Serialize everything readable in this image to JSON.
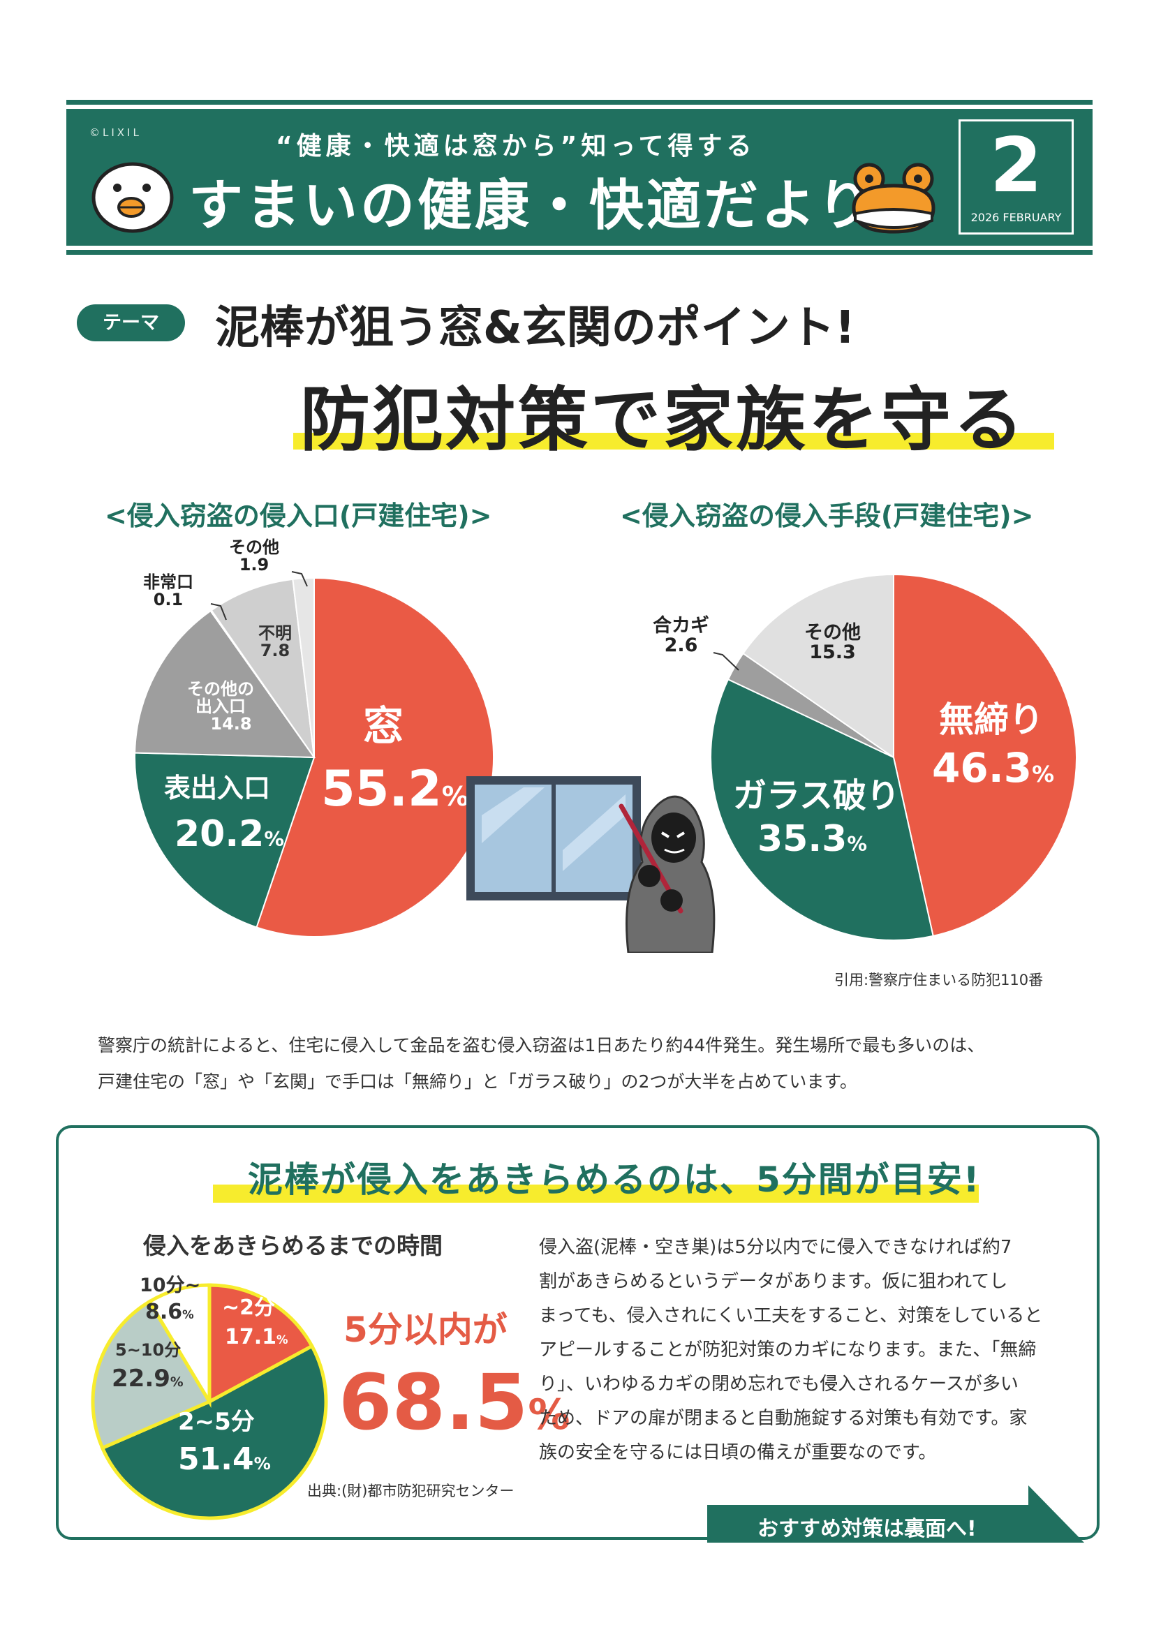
{
  "header": {
    "copyright": "©LIXIL",
    "subtitle": "“健康・快適は窓から”知って得する",
    "title": "すまいの健康・快適だより",
    "issue_number": "2",
    "issue_date": "2026 FEBRUARY"
  },
  "theme": {
    "badge": "テーマ",
    "line1": "泥棒が狙う窓&玄関のポイント!",
    "line2": "防犯対策で家族を守る"
  },
  "colors": {
    "green": "#20705f",
    "red": "#ea5a45",
    "gray": "#9e9e9e",
    "light_gray": "#e0e0e0",
    "pale_green": "#b9cdc7",
    "yellow": "#f7ec2d"
  },
  "icons": [
    "chick-icon",
    "frog-icon",
    "window-icon",
    "burglar-icon"
  ],
  "chart_data": [
    {
      "type": "pie",
      "title": "<侵入窃盗の侵入口(戸建住宅)>",
      "unit": "%",
      "slices": [
        {
          "label": "窓",
          "value": 55.2,
          "color": "#ea5a45"
        },
        {
          "label": "表出入口",
          "value": 20.2,
          "color": "#20705f"
        },
        {
          "label": "その他の出入口",
          "value": 14.8,
          "color": "#9e9e9e"
        },
        {
          "label": "非常口",
          "value": 0.1,
          "color": "#ffffff"
        },
        {
          "label": "不明",
          "value": 7.8,
          "color": "#cfcfcf"
        },
        {
          "label": "その他",
          "value": 1.9,
          "color": "#e6e6e6"
        }
      ],
      "display": {
        "main": {
          "label": "窓",
          "value": "55.2",
          "unit": "%"
        },
        "front": {
          "label": "表出入口",
          "value": "20.2",
          "unit": "%"
        },
        "other_door": {
          "label1": "その他の",
          "label2": "出入口",
          "value": "14.8"
        },
        "unknown": {
          "label": "不明",
          "value": "7.8"
        },
        "emergency": {
          "label": "非常口",
          "value": "0.1"
        },
        "other": {
          "label": "その他",
          "value": "1.9"
        }
      }
    },
    {
      "type": "pie",
      "title": "<侵入窃盗の侵入手段(戸建住宅)>",
      "unit": "%",
      "slices": [
        {
          "label": "無締り",
          "value": 46.3,
          "color": "#ea5a45"
        },
        {
          "label": "ガラス破り",
          "value": 35.3,
          "color": "#20705f"
        },
        {
          "label": "合カギ",
          "value": 2.6,
          "color": "#9e9e9e"
        },
        {
          "label": "その他",
          "value": 15.3,
          "color": "#e0e0e0"
        }
      ],
      "display": {
        "unlocked": {
          "label": "無締り",
          "value": "46.3",
          "unit": "%"
        },
        "glass": {
          "label": "ガラス破り",
          "value": "35.3",
          "unit": "%"
        },
        "dupkey": {
          "label": "合カギ",
          "value": "2.6"
        },
        "other": {
          "label": "その他",
          "value": "15.3"
        }
      }
    },
    {
      "type": "pie",
      "title": "侵入をあきらめるまでの時間",
      "unit": "%",
      "slices": [
        {
          "label": "~2分",
          "value": 17.1,
          "color": "#ea5a45"
        },
        {
          "label": "2~5分",
          "value": 51.4,
          "color": "#20705f"
        },
        {
          "label": "5~10分",
          "value": 22.9,
          "color": "#b9cdc7"
        },
        {
          "label": "10分~",
          "value": 8.6,
          "color": "#ffffff"
        }
      ],
      "display": {
        "under2": {
          "label": "~2分",
          "value": "17.1",
          "unit": "%"
        },
        "two_five": {
          "label": "2~5分",
          "value": "51.4",
          "unit": "%"
        },
        "five_ten": {
          "label": "5~10分",
          "value": "22.9",
          "unit": "%"
        },
        "over10": {
          "label": "10分~",
          "value": "8.6",
          "unit": "%"
        }
      }
    }
  ],
  "citation": "引用:警察庁住まいる防犯110番",
  "intro": [
    "警察庁の統計によると、住宅に侵入して金品を盗む侵入窃盗は1日あたり約44件発生。発生場所で最も多いのは、",
    "戸建住宅の「窓」や「玄関」で手口は「無締り」と「ガラス破り」の2つが大半を占めています。"
  ],
  "section": {
    "heading": "泥棒が侵入をあきらめるのは、5分間が目安!",
    "within5_text": "5分以内が",
    "within5_value": "68.5",
    "within5_unit": "%",
    "source": "出典:(財)都市防犯研究センター",
    "paragraph": [
      "侵入盗(泥棒・空き巣)は5分以内でに侵入できなければ約7",
      "割があきらめるというデータがあります。仮に狙われてし",
      "まっても、侵入されにくい工夫をすること、対策をしていると",
      "アピールすることが防犯対策のカギになります。また、「無締",
      "り」、いわゆるカギの閉め忘れでも侵入されるケースが多い",
      "ため、ドアの扉が閉まると自動施錠する対策も有効です。家",
      "族の安全を守るには日頃の備えが重要なのです。"
    ],
    "cta": "おすすめ対策は裏面へ!"
  }
}
